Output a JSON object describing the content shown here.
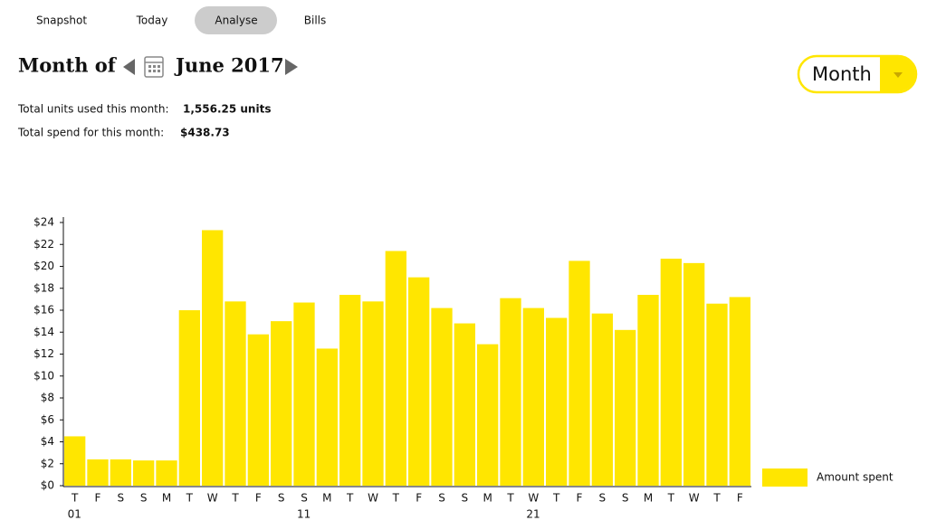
{
  "nav": {
    "tabs": [
      "Snapshot",
      "Today",
      "Analyse",
      "Bills"
    ],
    "active_index": 2
  },
  "header": {
    "month_of": "Month of",
    "period": "June 2017",
    "view": "Month"
  },
  "totals": {
    "units_label": "Total units used this month:",
    "units_value": "1,556.25 units",
    "spend_label": "Total spend for this month:",
    "spend_value": "$438.73"
  },
  "chart_data": {
    "type": "bar",
    "categories": [
      "T",
      "F",
      "S",
      "S",
      "M",
      "T",
      "W",
      "T",
      "F",
      "S",
      "S",
      "M",
      "T",
      "W",
      "T",
      "F",
      "S",
      "S",
      "M",
      "T",
      "W",
      "T",
      "F",
      "S",
      "S",
      "M",
      "T",
      "W",
      "T",
      "F"
    ],
    "sublabels": [
      "01",
      null,
      null,
      null,
      null,
      null,
      null,
      null,
      null,
      null,
      "11",
      null,
      null,
      null,
      null,
      null,
      null,
      null,
      null,
      null,
      "21",
      null,
      null,
      null,
      null,
      null,
      null,
      null,
      null,
      null
    ],
    "series": [
      {
        "name": "Amount spent",
        "color": "#ffe600",
        "values": [
          4.5,
          2.4,
          2.4,
          2.3,
          2.3,
          16.0,
          23.3,
          16.8,
          13.8,
          15.0,
          16.7,
          12.5,
          17.4,
          16.8,
          21.4,
          19.0,
          16.2,
          14.8,
          12.9,
          17.1,
          16.2,
          15.3,
          20.5,
          15.7,
          14.2,
          17.4,
          20.7,
          20.3,
          16.6,
          17.2
        ]
      }
    ],
    "ylim": [
      0,
      24
    ],
    "yticks": [
      {
        "value": 0,
        "label": "$0"
      },
      {
        "value": 2,
        "label": "$2"
      },
      {
        "value": 4,
        "label": "$4"
      },
      {
        "value": 6,
        "label": "$6"
      },
      {
        "value": 8,
        "label": "$8"
      },
      {
        "value": 10,
        "label": "$10"
      },
      {
        "value": 12,
        "label": "$12"
      },
      {
        "value": 14,
        "label": "$14"
      },
      {
        "value": 16,
        "label": "$16"
      },
      {
        "value": 18,
        "label": "$18"
      },
      {
        "value": 20,
        "label": "$20"
      },
      {
        "value": 22,
        "label": "$22"
      },
      {
        "value": 24,
        "label": "$24"
      }
    ],
    "grid": false,
    "legend": "right"
  }
}
